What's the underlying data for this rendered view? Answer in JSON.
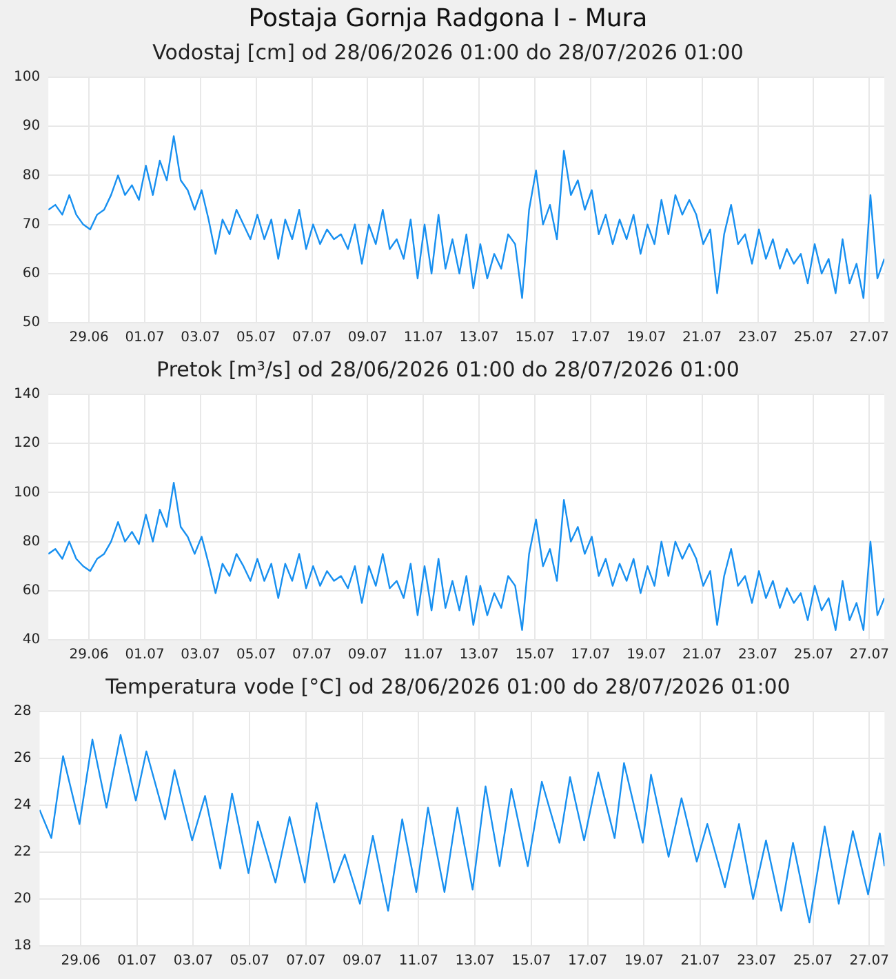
{
  "chart_data": [
    {
      "type": "line",
      "title": "Postaja Gornja Radgona I - Mura",
      "subtitle": "Vodostaj [cm] od 28/06/2026 01:00 do 28/07/2026 01:00",
      "grid": true,
      "x": [
        "2026-06-28T01:00",
        "2026-06-28T07:00",
        "2026-06-28T13:00",
        "2026-06-28T19:00",
        "2026-06-29T01:00",
        "2026-06-29T07:00",
        "2026-06-29T13:00",
        "2026-06-29T19:00",
        "2026-06-30T01:00",
        "2026-06-30T07:00",
        "2026-06-30T13:00",
        "2026-06-30T19:00",
        "2026-07-01T01:00",
        "2026-07-01T07:00",
        "2026-07-01T13:00",
        "2026-07-01T19:00",
        "2026-07-02T01:00",
        "2026-07-02T07:00",
        "2026-07-02T13:00",
        "2026-07-02T19:00",
        "2026-07-03T01:00",
        "2026-07-03T07:00",
        "2026-07-03T13:00",
        "2026-07-03T19:00",
        "2026-07-04T01:00",
        "2026-07-04T07:00",
        "2026-07-04T13:00",
        "2026-07-04T19:00",
        "2026-07-05T01:00",
        "2026-07-05T07:00",
        "2026-07-05T13:00",
        "2026-07-05T19:00",
        "2026-07-06T01:00",
        "2026-07-06T07:00",
        "2026-07-06T13:00",
        "2026-07-06T19:00",
        "2026-07-07T01:00",
        "2026-07-07T07:00",
        "2026-07-07T13:00",
        "2026-07-07T19:00",
        "2026-07-08T01:00",
        "2026-07-08T07:00",
        "2026-07-08T13:00",
        "2026-07-08T19:00",
        "2026-07-09T01:00",
        "2026-07-09T07:00",
        "2026-07-09T13:00",
        "2026-07-09T19:00",
        "2026-07-10T01:00",
        "2026-07-10T07:00",
        "2026-07-10T13:00",
        "2026-07-10T19:00",
        "2026-07-11T01:00",
        "2026-07-11T07:00",
        "2026-07-11T13:00",
        "2026-07-11T19:00",
        "2026-07-12T01:00",
        "2026-07-12T07:00",
        "2026-07-12T13:00",
        "2026-07-12T19:00",
        "2026-07-13T01:00",
        "2026-07-13T07:00",
        "2026-07-13T13:00",
        "2026-07-13T19:00",
        "2026-07-14T01:00",
        "2026-07-14T07:00",
        "2026-07-14T13:00",
        "2026-07-14T19:00",
        "2026-07-15T01:00",
        "2026-07-15T07:00",
        "2026-07-15T13:00",
        "2026-07-15T19:00",
        "2026-07-16T01:00",
        "2026-07-16T07:00",
        "2026-07-16T13:00",
        "2026-07-16T19:00",
        "2026-07-17T01:00",
        "2026-07-17T07:00",
        "2026-07-17T13:00",
        "2026-07-17T19:00",
        "2026-07-18T01:00",
        "2026-07-18T07:00",
        "2026-07-18T13:00",
        "2026-07-18T19:00",
        "2026-07-19T01:00",
        "2026-07-19T07:00",
        "2026-07-19T13:00",
        "2026-07-19T19:00",
        "2026-07-20T01:00",
        "2026-07-20T07:00",
        "2026-07-20T13:00",
        "2026-07-20T19:00",
        "2026-07-21T01:00",
        "2026-07-21T07:00",
        "2026-07-21T13:00",
        "2026-07-21T19:00",
        "2026-07-22T01:00",
        "2026-07-22T07:00",
        "2026-07-22T13:00",
        "2026-07-22T19:00",
        "2026-07-23T01:00",
        "2026-07-23T07:00",
        "2026-07-23T13:00",
        "2026-07-23T19:00",
        "2026-07-24T01:00",
        "2026-07-24T07:00",
        "2026-07-24T13:00",
        "2026-07-24T19:00",
        "2026-07-25T01:00",
        "2026-07-25T07:00",
        "2026-07-25T13:00",
        "2026-07-25T19:00",
        "2026-07-26T01:00",
        "2026-07-26T07:00",
        "2026-07-26T13:00",
        "2026-07-26T19:00",
        "2026-07-27T01:00",
        "2026-07-27T07:00",
        "2026-07-27T13:00",
        "2026-07-27T19:00",
        "2026-07-28T01:00"
      ],
      "series": [
        {
          "color": "#1890f0",
          "values": [
            73,
            74,
            72,
            76,
            72,
            70,
            69,
            72,
            73,
            76,
            80,
            76,
            78,
            75,
            82,
            76,
            83,
            79,
            88,
            79,
            77,
            73,
            77,
            71,
            64,
            71,
            68,
            73,
            70,
            67,
            72,
            67,
            71,
            63,
            71,
            67,
            73,
            65,
            70,
            66,
            69,
            67,
            68,
            65,
            70,
            62,
            70,
            66,
            73,
            65,
            67,
            63,
            71,
            59,
            70,
            60,
            72,
            61,
            67,
            60,
            68,
            57,
            66,
            59,
            64,
            61,
            68,
            66,
            55,
            73,
            81,
            70,
            74,
            67,
            85,
            76,
            79,
            73,
            77,
            68,
            72,
            66,
            71,
            67,
            72,
            64,
            70,
            66,
            75,
            68,
            76,
            72,
            75,
            72,
            66,
            69,
            56,
            68,
            74,
            66,
            68,
            62,
            69,
            63,
            67,
            61,
            65,
            62,
            64,
            58,
            66,
            60,
            63,
            56,
            67,
            58,
            62,
            55,
            76,
            59,
            63
          ]
        }
      ],
      "xlim": [
        "2026-06-28T01:00",
        "2026-07-28T01:00"
      ],
      "xticks": [
        {
          "value": "2026-06-29T12:00",
          "label": "29.06"
        },
        {
          "value": "2026-07-01T12:00",
          "label": "01.07"
        },
        {
          "value": "2026-07-03T12:00",
          "label": "03.07"
        },
        {
          "value": "2026-07-05T12:00",
          "label": "05.07"
        },
        {
          "value": "2026-07-07T12:00",
          "label": "07.07"
        },
        {
          "value": "2026-07-09T12:00",
          "label": "09.07"
        },
        {
          "value": "2026-07-11T12:00",
          "label": "11.07"
        },
        {
          "value": "2026-07-13T12:00",
          "label": "13.07"
        },
        {
          "value": "2026-07-15T12:00",
          "label": "15.07"
        },
        {
          "value": "2026-07-17T12:00",
          "label": "17.07"
        },
        {
          "value": "2026-07-19T12:00",
          "label": "19.07"
        },
        {
          "value": "2026-07-21T12:00",
          "label": "21.07"
        },
        {
          "value": "2026-07-23T12:00",
          "label": "23.07"
        },
        {
          "value": "2026-07-25T12:00",
          "label": "25.07"
        },
        {
          "value": "2026-07-27T12:00",
          "label": "27.07"
        }
      ],
      "ylim": [
        50,
        100
      ],
      "yticks": [
        50,
        60,
        70,
        80,
        90,
        100
      ]
    },
    {
      "type": "line",
      "title": "Pretok [m³/s] od 28/06/2026 01:00 do 28/07/2026 01:00",
      "grid": true,
      "x": [
        "2026-06-28T01:00",
        "2026-06-28T07:00",
        "2026-06-28T13:00",
        "2026-06-28T19:00",
        "2026-06-29T01:00",
        "2026-06-29T07:00",
        "2026-06-29T13:00",
        "2026-06-29T19:00",
        "2026-06-30T01:00",
        "2026-06-30T07:00",
        "2026-06-30T13:00",
        "2026-06-30T19:00",
        "2026-07-01T01:00",
        "2026-07-01T07:00",
        "2026-07-01T13:00",
        "2026-07-01T19:00",
        "2026-07-02T01:00",
        "2026-07-02T07:00",
        "2026-07-02T13:00",
        "2026-07-02T19:00",
        "2026-07-03T01:00",
        "2026-07-03T07:00",
        "2026-07-03T13:00",
        "2026-07-03T19:00",
        "2026-07-04T01:00",
        "2026-07-04T07:00",
        "2026-07-04T13:00",
        "2026-07-04T19:00",
        "2026-07-05T01:00",
        "2026-07-05T07:00",
        "2026-07-05T13:00",
        "2026-07-05T19:00",
        "2026-07-06T01:00",
        "2026-07-06T07:00",
        "2026-07-06T13:00",
        "2026-07-06T19:00",
        "2026-07-07T01:00",
        "2026-07-07T07:00",
        "2026-07-07T13:00",
        "2026-07-07T19:00",
        "2026-07-08T01:00",
        "2026-07-08T07:00",
        "2026-07-08T13:00",
        "2026-07-08T19:00",
        "2026-07-09T01:00",
        "2026-07-09T07:00",
        "2026-07-09T13:00",
        "2026-07-09T19:00",
        "2026-07-10T01:00",
        "2026-07-10T07:00",
        "2026-07-10T13:00",
        "2026-07-10T19:00",
        "2026-07-11T01:00",
        "2026-07-11T07:00",
        "2026-07-11T13:00",
        "2026-07-11T19:00",
        "2026-07-12T01:00",
        "2026-07-12T07:00",
        "2026-07-12T13:00",
        "2026-07-12T19:00",
        "2026-07-13T01:00",
        "2026-07-13T07:00",
        "2026-07-13T13:00",
        "2026-07-13T19:00",
        "2026-07-14T01:00",
        "2026-07-14T07:00",
        "2026-07-14T13:00",
        "2026-07-14T19:00",
        "2026-07-15T01:00",
        "2026-07-15T07:00",
        "2026-07-15T13:00",
        "2026-07-15T19:00",
        "2026-07-16T01:00",
        "2026-07-16T07:00",
        "2026-07-16T13:00",
        "2026-07-16T19:00",
        "2026-07-17T01:00",
        "2026-07-17T07:00",
        "2026-07-17T13:00",
        "2026-07-17T19:00",
        "2026-07-18T01:00",
        "2026-07-18T07:00",
        "2026-07-18T13:00",
        "2026-07-18T19:00",
        "2026-07-19T01:00",
        "2026-07-19T07:00",
        "2026-07-19T13:00",
        "2026-07-19T19:00",
        "2026-07-20T01:00",
        "2026-07-20T07:00",
        "2026-07-20T13:00",
        "2026-07-20T19:00",
        "2026-07-21T01:00",
        "2026-07-21T07:00",
        "2026-07-21T13:00",
        "2026-07-21T19:00",
        "2026-07-22T01:00",
        "2026-07-22T07:00",
        "2026-07-22T13:00",
        "2026-07-22T19:00",
        "2026-07-23T01:00",
        "2026-07-23T07:00",
        "2026-07-23T13:00",
        "2026-07-23T19:00",
        "2026-07-24T01:00",
        "2026-07-24T07:00",
        "2026-07-24T13:00",
        "2026-07-24T19:00",
        "2026-07-25T01:00",
        "2026-07-25T07:00",
        "2026-07-25T13:00",
        "2026-07-25T19:00",
        "2026-07-26T01:00",
        "2026-07-26T07:00",
        "2026-07-26T13:00",
        "2026-07-26T19:00",
        "2026-07-27T01:00",
        "2026-07-27T07:00",
        "2026-07-27T13:00",
        "2026-07-27T19:00",
        "2026-07-28T01:00"
      ],
      "series": [
        {
          "color": "#1890f0",
          "values": [
            75,
            77,
            73,
            80,
            73,
            70,
            68,
            73,
            75,
            80,
            88,
            80,
            84,
            79,
            91,
            80,
            93,
            86,
            104,
            86,
            82,
            75,
            82,
            71,
            59,
            71,
            66,
            75,
            70,
            64,
            73,
            64,
            71,
            57,
            71,
            64,
            75,
            61,
            70,
            62,
            68,
            64,
            66,
            61,
            70,
            55,
            70,
            62,
            75,
            61,
            64,
            57,
            71,
            50,
            70,
            52,
            73,
            53,
            64,
            52,
            66,
            46,
            62,
            50,
            59,
            53,
            66,
            62,
            44,
            75,
            89,
            70,
            77,
            64,
            97,
            80,
            86,
            75,
            82,
            66,
            73,
            62,
            71,
            64,
            73,
            59,
            70,
            62,
            80,
            66,
            80,
            73,
            79,
            73,
            62,
            68,
            46,
            66,
            77,
            62,
            66,
            55,
            68,
            57,
            64,
            53,
            61,
            55,
            59,
            48,
            62,
            52,
            57,
            44,
            64,
            48,
            55,
            44,
            80,
            50,
            57
          ]
        }
      ],
      "xlim": [
        "2026-06-28T01:00",
        "2026-07-28T01:00"
      ],
      "xticks": [
        {
          "value": "2026-06-29T12:00",
          "label": "29.06"
        },
        {
          "value": "2026-07-01T12:00",
          "label": "01.07"
        },
        {
          "value": "2026-07-03T12:00",
          "label": "03.07"
        },
        {
          "value": "2026-07-05T12:00",
          "label": "05.07"
        },
        {
          "value": "2026-07-07T12:00",
          "label": "07.07"
        },
        {
          "value": "2026-07-09T12:00",
          "label": "09.07"
        },
        {
          "value": "2026-07-11T12:00",
          "label": "11.07"
        },
        {
          "value": "2026-07-13T12:00",
          "label": "13.07"
        },
        {
          "value": "2026-07-15T12:00",
          "label": "15.07"
        },
        {
          "value": "2026-07-17T12:00",
          "label": "17.07"
        },
        {
          "value": "2026-07-19T12:00",
          "label": "19.07"
        },
        {
          "value": "2026-07-21T12:00",
          "label": "21.07"
        },
        {
          "value": "2026-07-23T12:00",
          "label": "23.07"
        },
        {
          "value": "2026-07-25T12:00",
          "label": "25.07"
        },
        {
          "value": "2026-07-27T12:00",
          "label": "27.07"
        }
      ],
      "ylim": [
        40,
        140
      ],
      "yticks": [
        40,
        60,
        80,
        100,
        120,
        140
      ]
    },
    {
      "type": "line",
      "title": "Temperatura vode [°C] od 28/06/2026 01:00 do 28/07/2026 01:00",
      "grid": true,
      "x": [
        "2026-06-28T01:00",
        "2026-06-28T11:00",
        "2026-06-28T21:00",
        "2026-06-29T11:00",
        "2026-06-29T22:00",
        "2026-06-30T10:00",
        "2026-06-30T22:00",
        "2026-07-01T11:00",
        "2026-07-01T20:00",
        "2026-07-02T12:00",
        "2026-07-02T20:00",
        "2026-07-03T11:00",
        "2026-07-03T22:00",
        "2026-07-04T11:00",
        "2026-07-04T21:00",
        "2026-07-05T11:00",
        "2026-07-05T19:00",
        "2026-07-06T10:00",
        "2026-07-06T22:00",
        "2026-07-07T11:00",
        "2026-07-07T21:00",
        "2026-07-08T12:00",
        "2026-07-08T21:00",
        "2026-07-09T10:00",
        "2026-07-09T21:00",
        "2026-07-10T10:00",
        "2026-07-10T22:00",
        "2026-07-11T10:00",
        "2026-07-11T20:00",
        "2026-07-12T10:00",
        "2026-07-12T21:00",
        "2026-07-13T10:00",
        "2026-07-13T21:00",
        "2026-07-14T09:00",
        "2026-07-14T19:00",
        "2026-07-15T09:00",
        "2026-07-15T21:00",
        "2026-07-16T12:00",
        "2026-07-16T21:00",
        "2026-07-17T09:00",
        "2026-07-17T21:00",
        "2026-07-18T11:00",
        "2026-07-18T19:00",
        "2026-07-19T11:00",
        "2026-07-19T18:00",
        "2026-07-20T09:00",
        "2026-07-20T20:00",
        "2026-07-21T09:00",
        "2026-07-21T18:00",
        "2026-07-22T09:00",
        "2026-07-22T21:00",
        "2026-07-23T09:00",
        "2026-07-23T20:00",
        "2026-07-24T09:00",
        "2026-07-24T19:00",
        "2026-07-25T09:00",
        "2026-07-25T22:00",
        "2026-07-26T10:00",
        "2026-07-26T22:00",
        "2026-07-27T11:00",
        "2026-07-27T21:00",
        "2026-07-28T01:00"
      ],
      "series": [
        {
          "color": "#1890f0",
          "values": [
            23.8,
            22.6,
            26.1,
            23.2,
            26.8,
            23.9,
            27.0,
            24.2,
            26.3,
            23.4,
            25.5,
            22.5,
            24.4,
            21.3,
            24.5,
            21.1,
            23.3,
            20.7,
            23.5,
            20.7,
            24.1,
            20.7,
            21.9,
            19.8,
            22.7,
            19.5,
            23.4,
            20.3,
            23.9,
            20.3,
            23.9,
            20.4,
            24.8,
            21.4,
            24.7,
            21.4,
            25.0,
            22.4,
            25.2,
            22.5,
            25.4,
            22.6,
            25.8,
            22.4,
            25.3,
            21.8,
            24.3,
            21.6,
            23.2,
            20.5,
            23.2,
            20.0,
            22.5,
            19.5,
            22.4,
            19.0,
            23.1,
            19.8,
            22.9,
            20.2,
            22.8,
            21.4
          ]
        }
      ],
      "xlim": [
        "2026-06-28T01:00",
        "2026-07-28T01:00"
      ],
      "xticks": [
        {
          "value": "2026-06-29T12:00",
          "label": "29.06"
        },
        {
          "value": "2026-07-01T12:00",
          "label": "01.07"
        },
        {
          "value": "2026-07-03T12:00",
          "label": "03.07"
        },
        {
          "value": "2026-07-05T12:00",
          "label": "05.07"
        },
        {
          "value": "2026-07-07T12:00",
          "label": "07.07"
        },
        {
          "value": "2026-07-09T12:00",
          "label": "09.07"
        },
        {
          "value": "2026-07-11T12:00",
          "label": "11.07"
        },
        {
          "value": "2026-07-13T12:00",
          "label": "13.07"
        },
        {
          "value": "2026-07-15T12:00",
          "label": "15.07"
        },
        {
          "value": "2026-07-17T12:00",
          "label": "17.07"
        },
        {
          "value": "2026-07-19T12:00",
          "label": "19.07"
        },
        {
          "value": "2026-07-21T12:00",
          "label": "21.07"
        },
        {
          "value": "2026-07-23T12:00",
          "label": "23.07"
        },
        {
          "value": "2026-07-25T12:00",
          "label": "25.07"
        },
        {
          "value": "2026-07-27T12:00",
          "label": "27.07"
        }
      ],
      "ylim": [
        18,
        28
      ],
      "yticks": [
        18,
        20,
        22,
        24,
        26,
        28
      ]
    }
  ]
}
